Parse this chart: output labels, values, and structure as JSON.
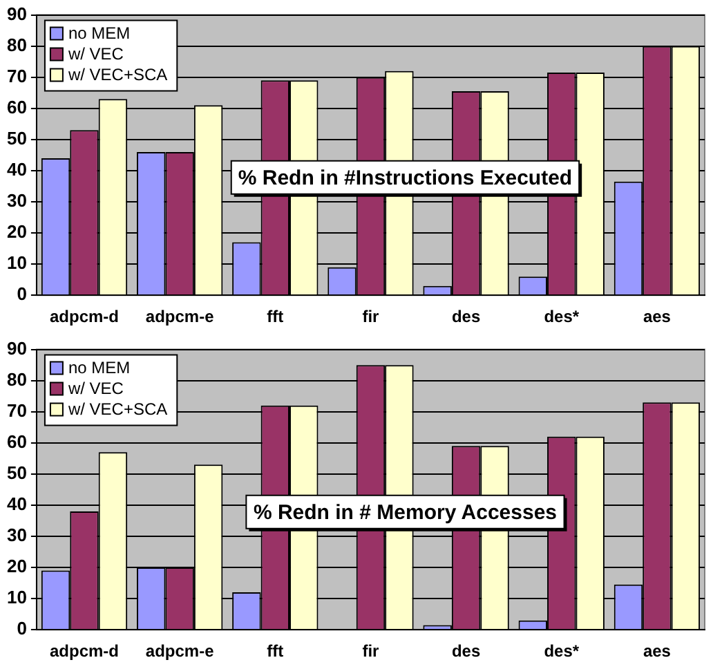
{
  "chart_data": [
    {
      "type": "bar",
      "title": "% Redn in #Instructions Executed",
      "categories": [
        "adpcm-d",
        "adpcm-e",
        "fft",
        "fir",
        "des",
        "des*",
        "aes"
      ],
      "series": [
        {
          "name": "no MEM",
          "color": "#9999ff",
          "values": [
            44,
            46,
            17,
            9,
            3,
            6,
            36.5
          ]
        },
        {
          "name": "w/ VEC",
          "color": "#993366",
          "values": [
            53,
            46,
            69,
            70,
            65.5,
            71.5,
            80
          ]
        },
        {
          "name": "w/ VEC+SCA",
          "color": "#ffffcc",
          "values": [
            63,
            61,
            69,
            72,
            65.5,
            71.5,
            80
          ]
        }
      ],
      "ylim": [
        0,
        90
      ],
      "yticks": [
        0,
        10,
        20,
        30,
        40,
        50,
        60,
        70,
        80,
        90
      ],
      "grid": "y",
      "legend": "top left"
    },
    {
      "type": "bar",
      "title": "% Redn in # Memory Accesses",
      "categories": [
        "adpcm-d",
        "adpcm-e",
        "fft",
        "fir",
        "des",
        "des*",
        "aes"
      ],
      "series": [
        {
          "name": "no MEM",
          "color": "#9999ff",
          "values": [
            19,
            20,
            12,
            0,
            1.5,
            3,
            14.5
          ]
        },
        {
          "name": "w/ VEC",
          "color": "#993366",
          "values": [
            38,
            20,
            72,
            85,
            59,
            62,
            73
          ]
        },
        {
          "name": "w/ VEC+SCA",
          "color": "#ffffcc",
          "values": [
            57,
            53,
            72,
            85,
            59,
            62,
            73
          ]
        }
      ],
      "ylim": [
        0,
        90
      ],
      "yticks": [
        0,
        10,
        20,
        30,
        40,
        50,
        60,
        70,
        80,
        90
      ],
      "grid": "y",
      "legend": "top left"
    }
  ]
}
